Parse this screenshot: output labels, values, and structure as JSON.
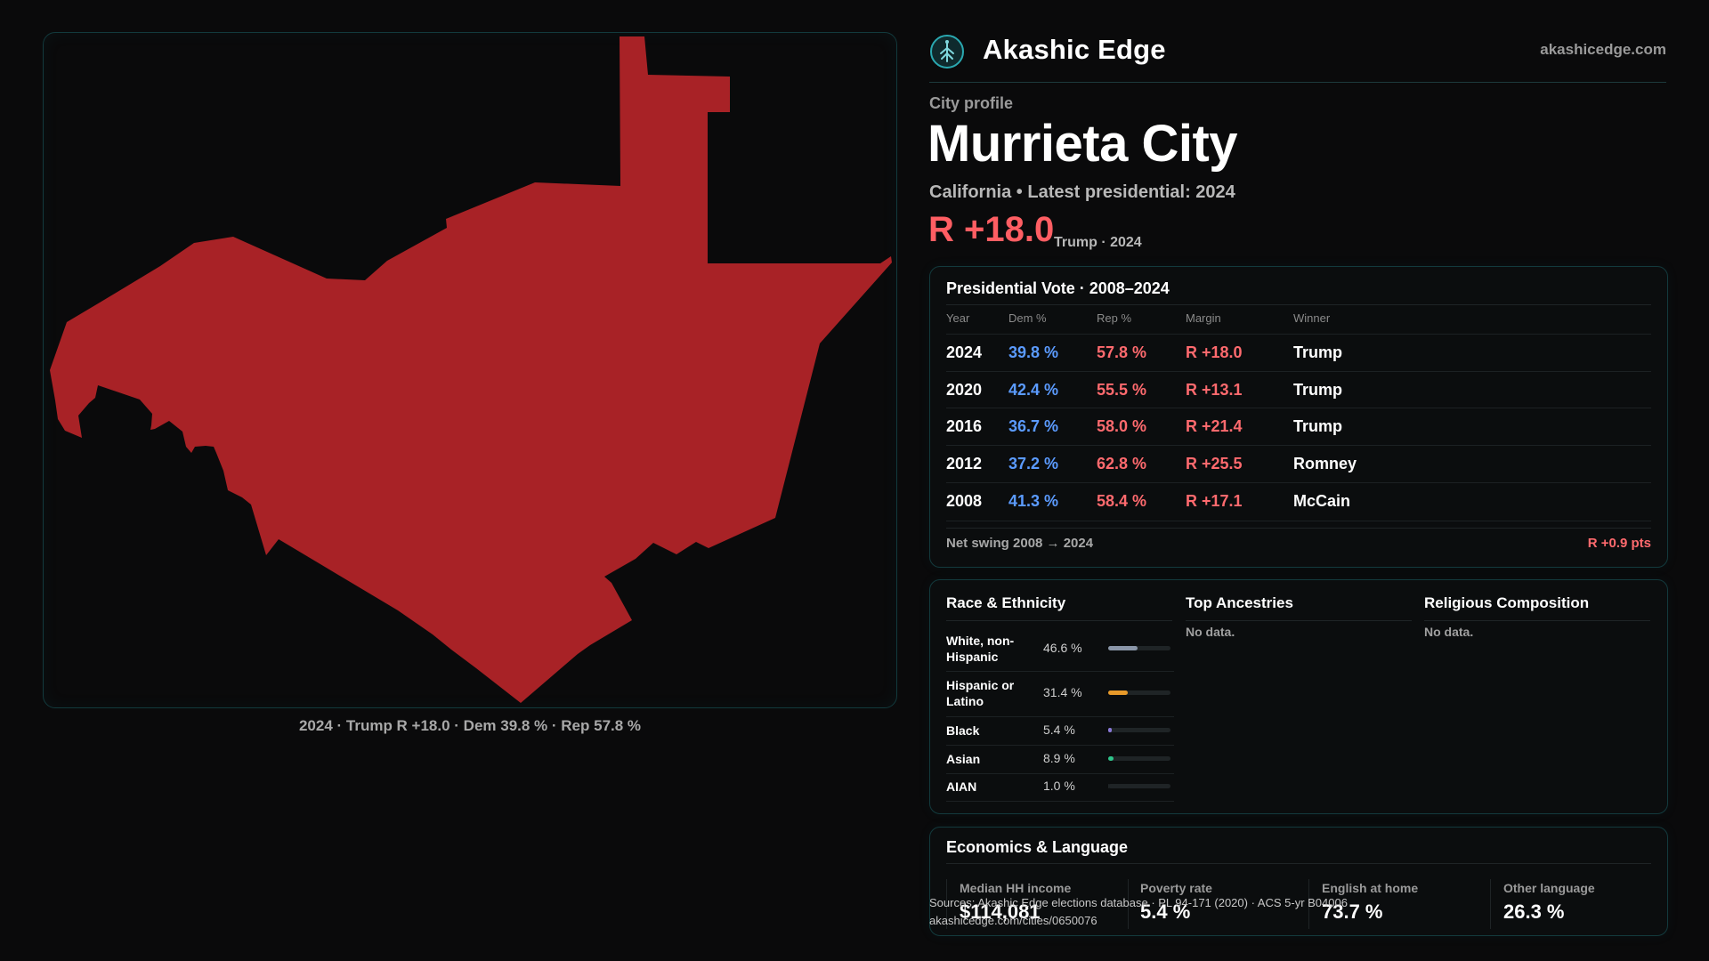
{
  "header": {
    "brand": "Akashic Edge",
    "site": "akashicedge.com",
    "logo_icon": "akashic-tree-logo"
  },
  "profile": {
    "kicker": "City profile",
    "city": "Murrieta City",
    "subtitle": "California • Latest presidential: 2024",
    "margin": "R +18.0",
    "margin_note": "Trump · 2024",
    "margin_color": "#ff5e63"
  },
  "map": {
    "fill_color": "#a82226",
    "caption": "2024 · Trump R +18.0 · Dem 39.8 % · Rep 57.8 %"
  },
  "vote_table": {
    "title": "Presidential Vote · 2008–2024",
    "headers": [
      "Year",
      "Dem %",
      "Rep %",
      "Margin",
      "Winner"
    ],
    "rows": [
      {
        "year": "2024",
        "dem": "39.8 %",
        "rep": "57.8 %",
        "margin": "R +18.0",
        "winner": "Trump"
      },
      {
        "year": "2020",
        "dem": "42.4 %",
        "rep": "55.5 %",
        "margin": "R +13.1",
        "winner": "Trump"
      },
      {
        "year": "2016",
        "dem": "36.7 %",
        "rep": "58.0 %",
        "margin": "R +21.4",
        "winner": "Trump"
      },
      {
        "year": "2012",
        "dem": "37.2 %",
        "rep": "62.8 %",
        "margin": "R +25.5",
        "winner": "Romney"
      },
      {
        "year": "2008",
        "dem": "41.3 %",
        "rep": "58.4 %",
        "margin": "R +17.1",
        "winner": "McCain"
      }
    ],
    "swing_label": "Net swing 2008 → 2024",
    "swing_value": "R +0.9 pts",
    "dem_color": "#5b9bff",
    "rep_color": "#ff6a6e"
  },
  "race": {
    "title": "Race & Ethnicity",
    "rows": [
      {
        "label": "White, non-Hispanic",
        "pct": "46.6 %",
        "value": 46.6,
        "color": "#8a96a8"
      },
      {
        "label": "Hispanic or Latino",
        "pct": "31.4 %",
        "value": 31.4,
        "color": "#e89a2a"
      },
      {
        "label": "Black",
        "pct": "5.4 %",
        "value": 5.4,
        "color": "#8a7ad8"
      },
      {
        "label": "Asian",
        "pct": "8.9 %",
        "value": 8.9,
        "color": "#2ec48a"
      },
      {
        "label": "AIAN",
        "pct": "1.0 %",
        "value": 1.0,
        "color": "#1f2426"
      }
    ]
  },
  "ancestries": {
    "title": "Top Ancestries",
    "empty": "No data."
  },
  "religion": {
    "title": "Religious Composition",
    "empty": "No data."
  },
  "econ": {
    "title": "Economics & Language",
    "stats": [
      {
        "label": "Median HH income",
        "value": "$114,081"
      },
      {
        "label": "Poverty rate",
        "value": "5.4 %"
      },
      {
        "label": "English at home",
        "value": "73.7 %"
      },
      {
        "label": "Other language",
        "value": "26.3 %"
      }
    ]
  },
  "source": {
    "line1": "Sources: Akashic Edge elections database · PL 94-171 (2020) · ACS 5-yr B04006",
    "line2": "akashicedge.com/cities/0650076"
  }
}
